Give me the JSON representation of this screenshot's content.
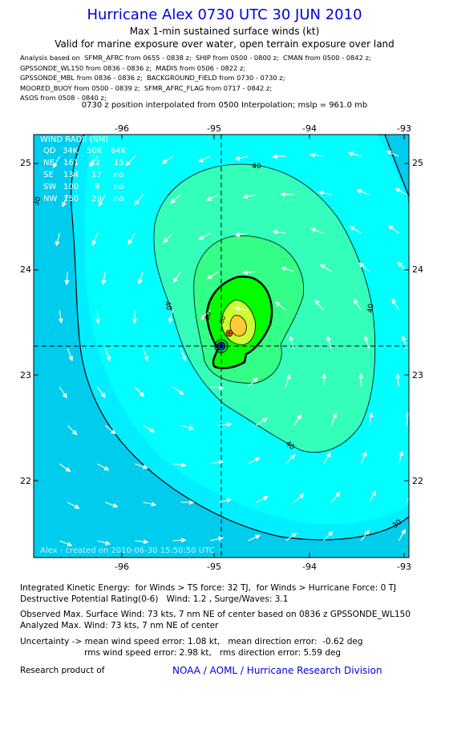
{
  "header": {
    "title": "Hurricane Alex 0730 UTC 30 JUN 2010",
    "subtitle": "Max 1-min sustained surface winds (kt)",
    "validity": "Valid for marine exposure over water, open terrain exposure over land",
    "analysis_lines": [
      "Analysis based on  SFMR_AFRC from 0655 - 0838 z;  SHIP from 0500 - 0800 z;  CMAN from 0500 - 0842 z;",
      "GPSSONDE_WL150 from 0836 - 0836 z;  MADIS from 0506 - 0822 z;",
      "GPSSONDE_MBL from 0836 - 0836 z;  BACKGROUND_FIELD from 0730 - 0730 z;",
      "MOORED_BUOY from 0500 - 0839 z;  SFMR_AFRC_FLAG from 0717 - 0842 z;",
      "ASOS from 0508 - 0840 z;"
    ],
    "position_line": "0730 z position interpolated from 0500 Interpolation; mslp = 961.0 mb"
  },
  "map": {
    "lon_labels": [
      "-96",
      "-95",
      "-94",
      "-93"
    ],
    "lat_labels": [
      "25",
      "24",
      "23",
      "22"
    ],
    "contour_labels": [
      "40",
      "40",
      "40",
      "40",
      "30",
      "30",
      "50",
      "60"
    ],
    "watermark": "Alex - created on 2010-06-30 15:50:50 UTC",
    "colors": {
      "background": "#00ddff",
      "outer_30kt": "#00ccff",
      "field_34": "#00eeff",
      "field_40": "#00ffcc",
      "field_50": "#33ff99",
      "field_64": "#00ff00",
      "field_72": "#ccff33",
      "field_max": "#ff6600"
    },
    "wind_radii": {
      "title": "WIND RADII (NM)",
      "header": [
        "QD",
        "34K",
        "50K",
        "64K"
      ],
      "rows": [
        [
          "NE",
          "161",
          "42",
          "15"
        ],
        [
          "SE",
          "134",
          "17",
          "no"
        ],
        [
          "SW",
          "100",
          "9",
          "no"
        ],
        [
          "NW",
          "150",
          "29",
          "no"
        ]
      ]
    }
  },
  "footer": {
    "ike": "Integrated Kinetic Energy:  for Winds > TS force: 32 TJ,  for Winds > Hurricane Force: 0 TJ",
    "dp": "Destructive Potential Rating(0-6)   Wind: 1.2 , Surge/Waves: 3.1",
    "observed": "Observed Max. Surface Wind: 73 kts, 7 nm NE of center based on 0836 z GPSSONDE_WL150",
    "analyzed": "Analyzed Max. Wind: 73 kts, 7 nm NE of center",
    "uncert1": "Uncertainty -> mean wind speed error: 1.08 kt,   mean direction error:  -0.62 deg",
    "uncert2": "                        rms wind speed error: 2.98 kt,   rms direction error: 5.59 deg",
    "research": "Research product of",
    "org": "NOAA / AOML / Hurricane Research Division"
  }
}
